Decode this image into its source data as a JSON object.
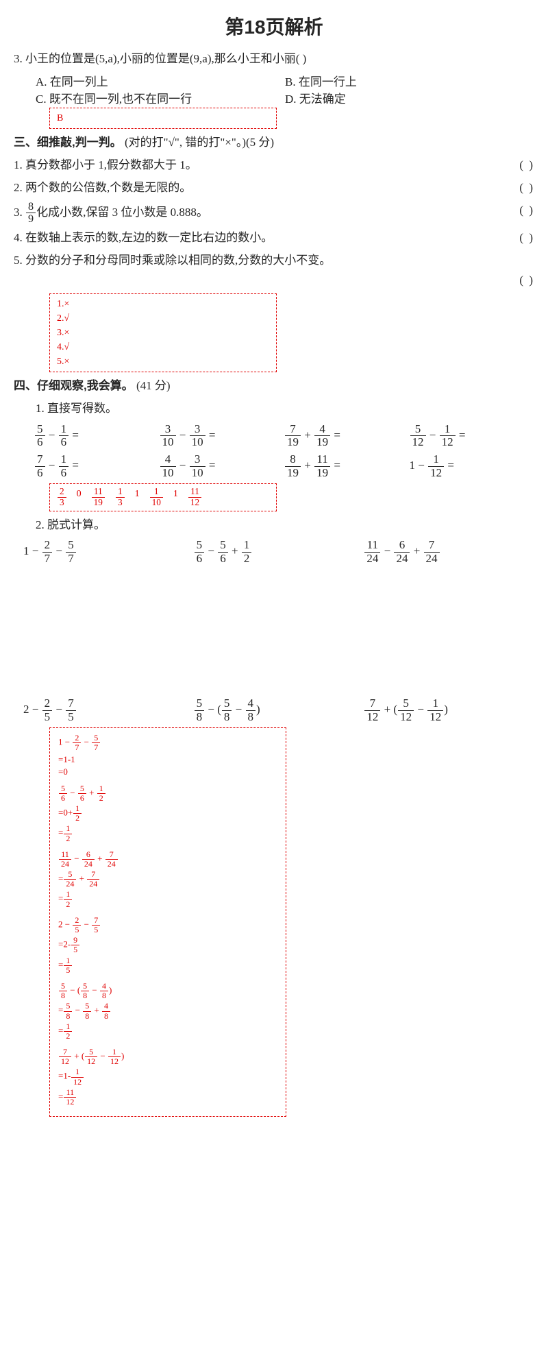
{
  "title": "第18页解析",
  "q3": {
    "num": "3.",
    "text": "小王的位置是(5,a),小丽的位置是(9,a),那么小王和小丽(      )",
    "a": "A. 在同一列上",
    "b": "B. 在同一行上",
    "c": "C. 既不在同一列,也不在同一行",
    "d": "D. 无法确定",
    "answer": "B"
  },
  "s3": {
    "heading": "三、细推敲,判一判。",
    "note": "(对的打\"√\", 错的打\"×\"。)(5 分)",
    "q1": "1. 真分数都小于 1,假分数都大于 1。",
    "q2": "2. 两个数的公倍数,个数是无限的。",
    "q3a": "3. ",
    "q3b": "化成小数,保留 3 位小数是 0.888。",
    "q3_fn": "8",
    "q3_fd": "9",
    "q4": "4. 在数轴上表示的数,左边的数一定比右边的数小。",
    "q5": "5. 分数的分子和分母同时乘或除以相同的数,分数的大小不变。",
    "paren": "(      )",
    "answers": [
      "1.×",
      "2.√",
      "3.×",
      "4.√",
      "5.×"
    ]
  },
  "s4": {
    "heading": "四、仔细观察,我会算。",
    "note": "(41 分)",
    "sub1": "1. 直接写得数。",
    "row1": [
      {
        "an": "5",
        "ad": "6",
        "bn": "1",
        "bd": "6",
        "op": "−"
      },
      {
        "an": "3",
        "ad": "10",
        "bn": "3",
        "bd": "10",
        "op": "−"
      },
      {
        "an": "7",
        "ad": "19",
        "bn": "4",
        "bd": "19",
        "op": "+"
      },
      {
        "an": "5",
        "ad": "12",
        "bn": "1",
        "bd": "12",
        "op": "−"
      }
    ],
    "row2": [
      {
        "an": "7",
        "ad": "6",
        "bn": "1",
        "bd": "6",
        "op": "−"
      },
      {
        "an": "4",
        "ad": "10",
        "bn": "3",
        "bd": "10",
        "op": "−"
      },
      {
        "an": "8",
        "ad": "19",
        "bn": "11",
        "bd": "19",
        "op": "+"
      },
      {
        "whole": "1",
        "bn": "1",
        "bd": "12",
        "op": "−"
      }
    ],
    "ans1": [
      {
        "n": "2",
        "d": "3"
      },
      {
        "t": "0"
      },
      {
        "n": "11",
        "d": "19"
      },
      {
        "n": "1",
        "d": "3"
      },
      {
        "t": "1"
      },
      {
        "n": "1",
        "d": "10"
      },
      {
        "t": "1"
      },
      {
        "n": "11",
        "d": "12"
      }
    ],
    "sub2": "2. 脱式计算。",
    "eq": {
      "a": {
        "w": "1",
        "f1n": "2",
        "f1d": "7",
        "op1": "−",
        "f2n": "5",
        "f2d": "7",
        "op2": "−"
      },
      "b": {
        "f1n": "5",
        "f1d": "6",
        "op1": "−",
        "f2n": "5",
        "f2d": "6",
        "op2": "+",
        "f3n": "1",
        "f3d": "2"
      },
      "c": {
        "f1n": "11",
        "f1d": "24",
        "op1": "−",
        "f2n": "6",
        "f2d": "24",
        "op2": "+",
        "f3n": "7",
        "f3d": "24"
      },
      "d": {
        "w": "2",
        "f1n": "2",
        "f1d": "5",
        "op1": "−",
        "f2n": "7",
        "f2d": "5",
        "op2": "−"
      },
      "e": {
        "f1n": "5",
        "f1d": "8",
        "lp": "− (",
        "f2n": "5",
        "f2d": "8",
        "op2": "−",
        "f3n": "4",
        "f3d": "8",
        "rp": ")"
      },
      "f": {
        "f1n": "7",
        "f1d": "12",
        "lp": "+ (",
        "f2n": "5",
        "f2d": "12",
        "op2": "−",
        "f3n": "1",
        "f3d": "12",
        "rp": ")"
      }
    },
    "sol": [
      {
        "h": [
          {
            "t": "1 − "
          },
          {
            "n": "2",
            "d": "7"
          },
          {
            "t": " − "
          },
          {
            "n": "5",
            "d": "7"
          }
        ],
        "s": [
          "=1-1",
          "=0"
        ]
      },
      {
        "h": [
          {
            "n": "5",
            "d": "6"
          },
          {
            "t": " − "
          },
          {
            "n": "5",
            "d": "6"
          },
          {
            "t": " + "
          },
          {
            "n": "1",
            "d": "2"
          }
        ],
        "s2": [
          [
            {
              "t": "=0+"
            },
            {
              "n": "1",
              "d": "2"
            }
          ],
          [
            {
              "t": "="
            },
            {
              "n": "1",
              "d": "2"
            }
          ]
        ]
      },
      {
        "h": [
          {
            "n": "11",
            "d": "24"
          },
          {
            "t": " − "
          },
          {
            "n": "6",
            "d": "24"
          },
          {
            "t": " + "
          },
          {
            "n": "7",
            "d": "24"
          }
        ],
        "s2": [
          [
            {
              "t": "="
            },
            {
              "n": "5",
              "d": "24"
            },
            {
              "t": " + "
            },
            {
              "n": "7",
              "d": "24"
            }
          ],
          [
            {
              "t": "="
            },
            {
              "n": "1",
              "d": "2"
            }
          ]
        ]
      },
      {
        "h": [
          {
            "t": "2 − "
          },
          {
            "n": "2",
            "d": "5"
          },
          {
            "t": " − "
          },
          {
            "n": "7",
            "d": "5"
          }
        ],
        "s2": [
          [
            {
              "t": "=2-"
            },
            {
              "n": "9",
              "d": "5"
            }
          ],
          [
            {
              "t": "="
            },
            {
              "n": "1",
              "d": "5"
            }
          ]
        ]
      },
      {
        "h": [
          {
            "n": "5",
            "d": "8"
          },
          {
            "t": " − ("
          },
          {
            "n": "5",
            "d": "8"
          },
          {
            "t": " − "
          },
          {
            "n": "4",
            "d": "8"
          },
          {
            "t": ")"
          }
        ],
        "s2": [
          [
            {
              "t": "="
            },
            {
              "n": "5",
              "d": "8"
            },
            {
              "t": " − "
            },
            {
              "n": "5",
              "d": "8"
            },
            {
              "t": " + "
            },
            {
              "n": "4",
              "d": "8"
            }
          ],
          [
            {
              "t": "="
            },
            {
              "n": "1",
              "d": "2"
            }
          ]
        ]
      },
      {
        "h": [
          {
            "n": "7",
            "d": "12"
          },
          {
            "t": " + ("
          },
          {
            "n": "5",
            "d": "12"
          },
          {
            "t": " − "
          },
          {
            "n": "1",
            "d": "12"
          },
          {
            "t": ")"
          }
        ],
        "s2": [
          [
            {
              "t": "=1-"
            },
            {
              "n": "1",
              "d": "12"
            }
          ],
          [
            {
              "t": "="
            },
            {
              "n": "11",
              "d": "12"
            }
          ]
        ]
      }
    ]
  }
}
